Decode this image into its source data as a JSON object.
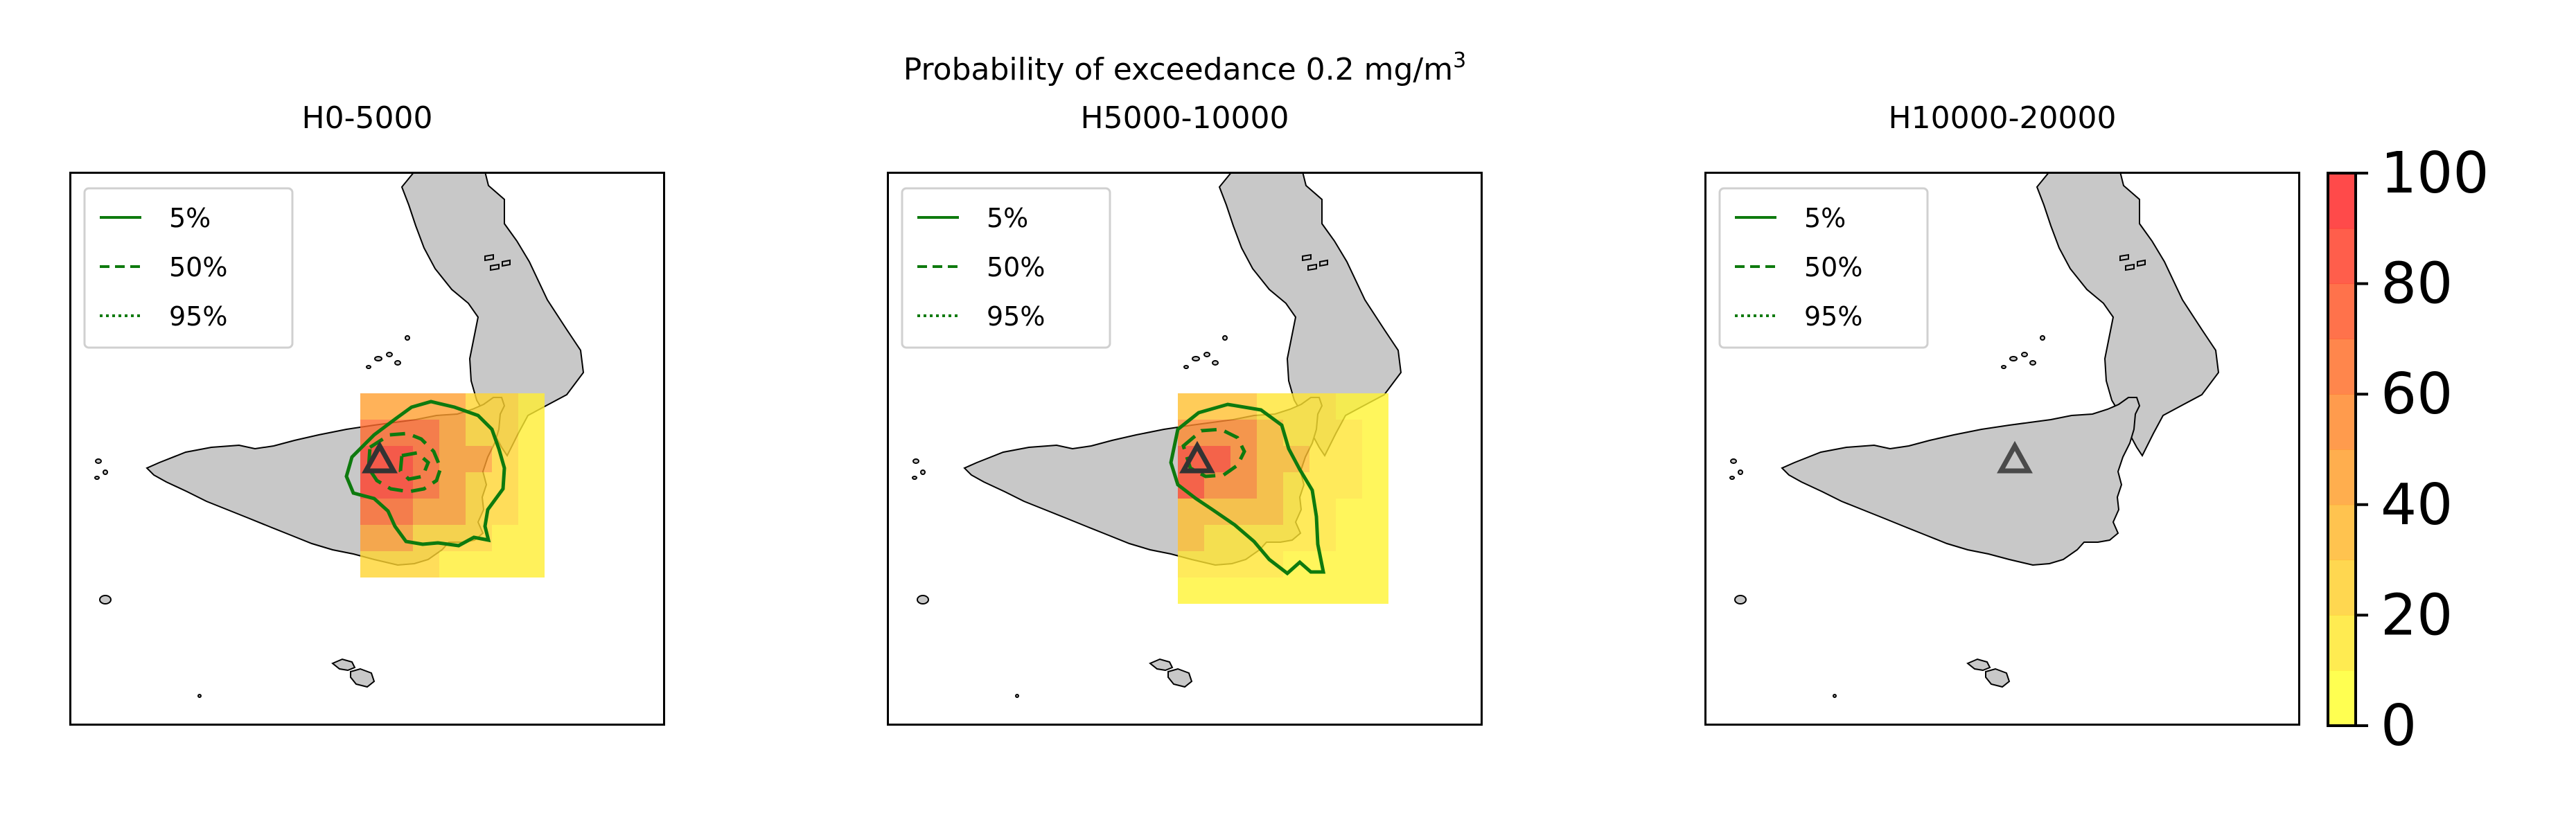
{
  "suptitle": {
    "main": "Probability of exceedance 0.2 mg/m",
    "superscript": "3"
  },
  "panels": [
    {
      "title": "H0-5000",
      "has_cells": true,
      "contours": [
        "5%",
        "50%"
      ]
    },
    {
      "title": "H5000-10000",
      "has_cells": true,
      "contours": [
        "5%",
        "50%"
      ]
    },
    {
      "title": "H10000-20000",
      "has_cells": false,
      "contours": []
    }
  ],
  "legend": {
    "items": [
      {
        "label": "5%",
        "style": "solid"
      },
      {
        "label": "50%",
        "style": "dashed"
      },
      {
        "label": "95%",
        "style": "dotted"
      }
    ]
  },
  "colorbar": {
    "ticks": [
      "0",
      "20",
      "40",
      "60",
      "80",
      "100"
    ],
    "min": 0,
    "max": 100,
    "levels": 10,
    "color_low": "#ffff33",
    "color_high": "#ff2a2a",
    "alpha": 0.85
  },
  "colors": {
    "land": "#c8c8c8",
    "coast": "#000000",
    "contour": "#0e7a0e",
    "vent_marker": "#333333"
  },
  "vent_marker_icon": "triangle-icon"
}
